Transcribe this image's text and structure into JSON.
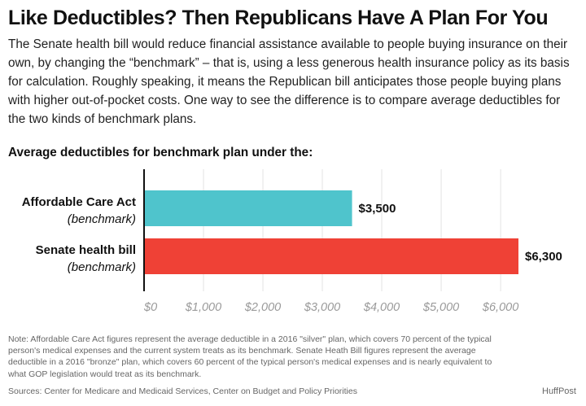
{
  "headline": "Like Deductibles? Then Republicans Have A Plan For You",
  "intro": "The Senate health bill would reduce financial assistance available to people buying insurance on their own, by changing the “benchmark” – that is, using a less generous health insurance policy as its basis for calculation. Roughly speaking, it means the Republican bill anticipates those people buying plans with higher out-of-pocket costs.  One way to see the difference is to compare average deductibles for the two kinds of benchmark plans.",
  "note": "Note: Affordable Care Act figures represent the average deductible in a 2016 \"silver\" plan, which covers 70 percent of the typical person's medical expenses and the current system treats as its benchmark. Senate Heath Bill figures represent the average deductible in a 2016 \"bronze\" plan, which covers 60 percent of the typical person's medical expenses and is nearly equivalent to what GOP legislation would treat as its benchmark.",
  "source": "Sources: Center for Medicare and Medicaid Services, Center on Budget and Policy Priorities",
  "brand": "HuffPost",
  "chart_data": {
    "type": "bar",
    "orientation": "horizontal",
    "title": "Average deductibles for benchmark plan under the:",
    "categories": [
      {
        "name": "Affordable Care Act",
        "qualifier": "(benchmark)"
      },
      {
        "name": "Senate health bill",
        "qualifier": "(benchmark)"
      }
    ],
    "values": [
      3500,
      6300
    ],
    "value_labels": [
      "$3,500",
      "$6,300"
    ],
    "colors": [
      "#4fc4cc",
      "#ef4136"
    ],
    "xlim": [
      0,
      6300
    ],
    "xticks": [
      0,
      1000,
      2000,
      3000,
      4000,
      5000,
      6000
    ],
    "xtick_labels": [
      "$0",
      "$1,000",
      "$2,000",
      "$3,000",
      "$4,000",
      "$5,000",
      "$6,000"
    ],
    "grid": true,
    "xlabel": "",
    "ylabel": ""
  }
}
